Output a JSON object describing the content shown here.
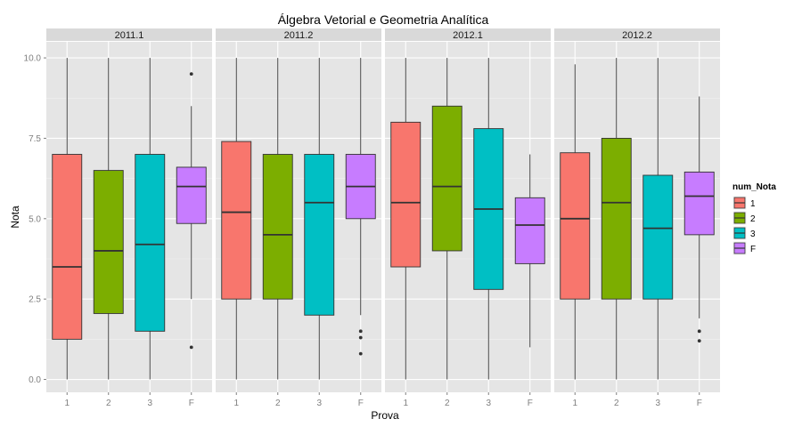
{
  "chart_data": {
    "type": "boxplot",
    "title": "Álgebra Vetorial e Geometria Analítica",
    "xlabel": "Prova",
    "ylabel": "Nota",
    "ylim": [
      -0.4,
      10.5
    ],
    "yticks": [
      0.0,
      2.5,
      5.0,
      7.5,
      10.0
    ],
    "ytick_labels": [
      "0.0",
      "2.5",
      "5.0",
      "7.5",
      "10.0"
    ],
    "categories": [
      "1",
      "2",
      "3",
      "F"
    ],
    "grid": true,
    "legend": {
      "title": "num_Nota",
      "position": "right",
      "entries": [
        {
          "label": "1",
          "color": "#F8766D"
        },
        {
          "label": "2",
          "color": "#7CAE00"
        },
        {
          "label": "3",
          "color": "#00BFC4"
        },
        {
          "label": "F",
          "color": "#C77CFF"
        }
      ]
    },
    "panels": [
      {
        "label": "2011.1",
        "boxes": [
          {
            "category": "1",
            "min": 0.0,
            "q1": 1.25,
            "median": 3.5,
            "q3": 7.0,
            "max": 10.0,
            "outliers": []
          },
          {
            "category": "2",
            "min": 0.0,
            "q1": 2.05,
            "median": 4.0,
            "q3": 6.5,
            "max": 10.0,
            "outliers": []
          },
          {
            "category": "3",
            "min": 0.0,
            "q1": 1.5,
            "median": 4.2,
            "q3": 7.0,
            "max": 10.0,
            "outliers": []
          },
          {
            "category": "F",
            "min": 2.5,
            "q1": 4.85,
            "median": 6.0,
            "q3": 6.6,
            "max": 8.5,
            "outliers": [
              9.5,
              1.0
            ]
          }
        ]
      },
      {
        "label": "2011.2",
        "boxes": [
          {
            "category": "1",
            "min": 0.0,
            "q1": 2.5,
            "median": 5.2,
            "q3": 7.4,
            "max": 10.0,
            "outliers": []
          },
          {
            "category": "2",
            "min": 0.0,
            "q1": 2.5,
            "median": 4.5,
            "q3": 7.0,
            "max": 10.0,
            "outliers": []
          },
          {
            "category": "3",
            "min": 0.0,
            "q1": 2.0,
            "median": 5.5,
            "q3": 7.0,
            "max": 10.0,
            "outliers": []
          },
          {
            "category": "F",
            "min": 2.0,
            "q1": 5.0,
            "median": 6.0,
            "q3": 7.0,
            "max": 10.0,
            "outliers": [
              1.5,
              1.3,
              0.8
            ]
          }
        ]
      },
      {
        "label": "2012.1",
        "boxes": [
          {
            "category": "1",
            "min": 0.0,
            "q1": 3.5,
            "median": 5.5,
            "q3": 8.0,
            "max": 10.0,
            "outliers": []
          },
          {
            "category": "2",
            "min": 0.0,
            "q1": 4.0,
            "median": 6.0,
            "q3": 8.5,
            "max": 10.0,
            "outliers": []
          },
          {
            "category": "3",
            "min": 0.0,
            "q1": 2.8,
            "median": 5.3,
            "q3": 7.8,
            "max": 10.0,
            "outliers": []
          },
          {
            "category": "F",
            "min": 1.0,
            "q1": 3.6,
            "median": 4.8,
            "q3": 5.65,
            "max": 7.0,
            "outliers": []
          }
        ]
      },
      {
        "label": "2012.2",
        "boxes": [
          {
            "category": "1",
            "min": 0.0,
            "q1": 2.5,
            "median": 5.0,
            "q3": 7.05,
            "max": 9.8,
            "outliers": []
          },
          {
            "category": "2",
            "min": 0.0,
            "q1": 2.5,
            "median": 5.5,
            "q3": 7.5,
            "max": 10.0,
            "outliers": []
          },
          {
            "category": "3",
            "min": 0.0,
            "q1": 2.5,
            "median": 4.7,
            "q3": 6.35,
            "max": 10.0,
            "outliers": []
          },
          {
            "category": "F",
            "min": 1.9,
            "q1": 4.5,
            "median": 5.7,
            "q3": 6.45,
            "max": 8.8,
            "outliers": [
              1.5,
              1.2
            ]
          }
        ]
      }
    ]
  }
}
